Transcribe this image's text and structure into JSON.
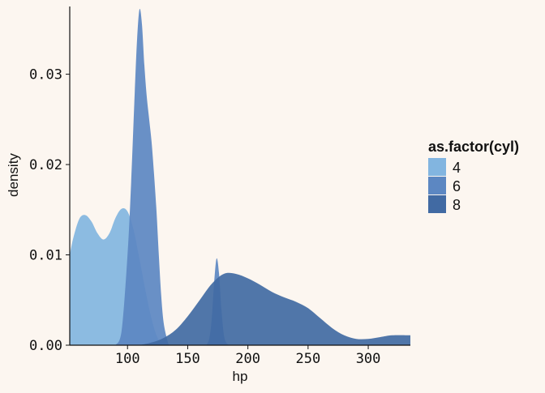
{
  "chart_data": {
    "type": "area",
    "xlabel": "hp",
    "ylabel": "density",
    "xlim": [
      52,
      335
    ],
    "ylim": [
      0,
      0.0375
    ],
    "x_ticks": [
      100,
      150,
      200,
      250,
      300
    ],
    "y_ticks": [
      0.0,
      0.01,
      0.02,
      0.03
    ],
    "x_tick_labels": [
      "100",
      "150",
      "200",
      "250",
      "300"
    ],
    "y_tick_labels": [
      "0.00",
      "0.01",
      "0.02",
      "0.03"
    ],
    "grid": false,
    "legend_title": "as.factor(cyl)",
    "legend_position": "right",
    "series": [
      {
        "name": "4",
        "color": "#82b5e0",
        "x": [
          52,
          55,
          60,
          65,
          70,
          75,
          80,
          85,
          90,
          95,
          100,
          105,
          110,
          115,
          120,
          125,
          130
        ],
        "y": [
          0.01,
          0.0119,
          0.014,
          0.0144,
          0.0137,
          0.0124,
          0.0117,
          0.0124,
          0.0141,
          0.0151,
          0.0148,
          0.0128,
          0.0095,
          0.006,
          0.0029,
          0.0008,
          0.0
        ]
      },
      {
        "name": "6",
        "color": "#5c87c2",
        "x": [
          90,
          95,
          100,
          103,
          106,
          108,
          110,
          112,
          114,
          116,
          118,
          120,
          122,
          124,
          126,
          128,
          130,
          133,
          135,
          140,
          145,
          150,
          155,
          160,
          165,
          168,
          170,
          172,
          174,
          176,
          178,
          180,
          182,
          185,
          190
        ],
        "y": [
          0.0,
          0.0015,
          0.01,
          0.018,
          0.028,
          0.034,
          0.0372,
          0.0355,
          0.031,
          0.0275,
          0.025,
          0.0225,
          0.019,
          0.015,
          0.01,
          0.0055,
          0.0025,
          0.0006,
          0.0,
          0.0,
          0.0,
          0.0,
          0.0,
          0.0,
          0.0,
          0.0008,
          0.003,
          0.007,
          0.0096,
          0.008,
          0.004,
          0.0012,
          0.0003,
          0.0,
          0.0
        ]
      },
      {
        "name": "8",
        "color": "#416aa3",
        "x": [
          110,
          120,
          130,
          140,
          150,
          160,
          170,
          180,
          190,
          200,
          210,
          220,
          230,
          240,
          250,
          260,
          270,
          280,
          290,
          300,
          310,
          320,
          335
        ],
        "y": [
          0.0,
          0.0003,
          0.0008,
          0.0017,
          0.0032,
          0.005,
          0.0068,
          0.0079,
          0.0079,
          0.0074,
          0.0067,
          0.0059,
          0.0053,
          0.0048,
          0.0041,
          0.003,
          0.0019,
          0.0011,
          0.0007,
          0.0007,
          0.0009,
          0.0011,
          0.0011
        ]
      }
    ]
  }
}
